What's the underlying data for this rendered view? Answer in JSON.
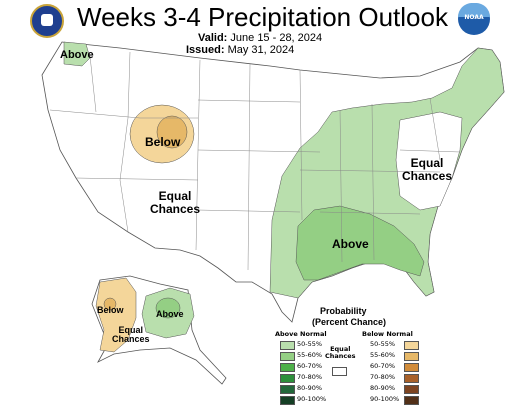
{
  "title": "Weeks 3-4 Precipitation Outlook",
  "valid_label": "Valid:",
  "valid_dates": "June 15 - 28, 2024",
  "issued_label": "Issued:",
  "issued_date": "May 31, 2024",
  "logos": {
    "left": "doc-seal-icon",
    "right": "noaa-logo-icon",
    "noaa_text": "NOAA"
  },
  "regions": {
    "above_nw": "Above",
    "below_rockies": "Below",
    "equal_west": [
      "Equal",
      "Chances"
    ],
    "equal_east": [
      "Equal",
      "Chances"
    ],
    "above_southeast": "Above",
    "alaska_below": "Below",
    "alaska_equal": [
      "Equal",
      "Chances"
    ],
    "alaska_above": "Above"
  },
  "legend": {
    "title": "Probability",
    "subtitle": "(Percent Chance)",
    "above_header": "Above Normal",
    "below_header": "Below Normal",
    "equal_label": [
      "Equal",
      "Chances"
    ],
    "above": [
      {
        "range": "50-55%",
        "color": "#b9dfad"
      },
      {
        "range": "55-60%",
        "color": "#94cf84"
      },
      {
        "range": "60-70%",
        "color": "#4eb049"
      },
      {
        "range": "70-80%",
        "color": "#2d8f3b"
      },
      {
        "range": "80-90%",
        "color": "#22673a"
      },
      {
        "range": "90-100%",
        "color": "#153f25"
      }
    ],
    "below": [
      {
        "range": "50-55%",
        "color": "#f4d69a"
      },
      {
        "range": "55-60%",
        "color": "#e6b868"
      },
      {
        "range": "60-70%",
        "color": "#d18c3b"
      },
      {
        "range": "70-80%",
        "color": "#a8612a"
      },
      {
        "range": "80-90%",
        "color": "#7d4421"
      },
      {
        "range": "90-100%",
        "color": "#523018"
      }
    ]
  }
}
